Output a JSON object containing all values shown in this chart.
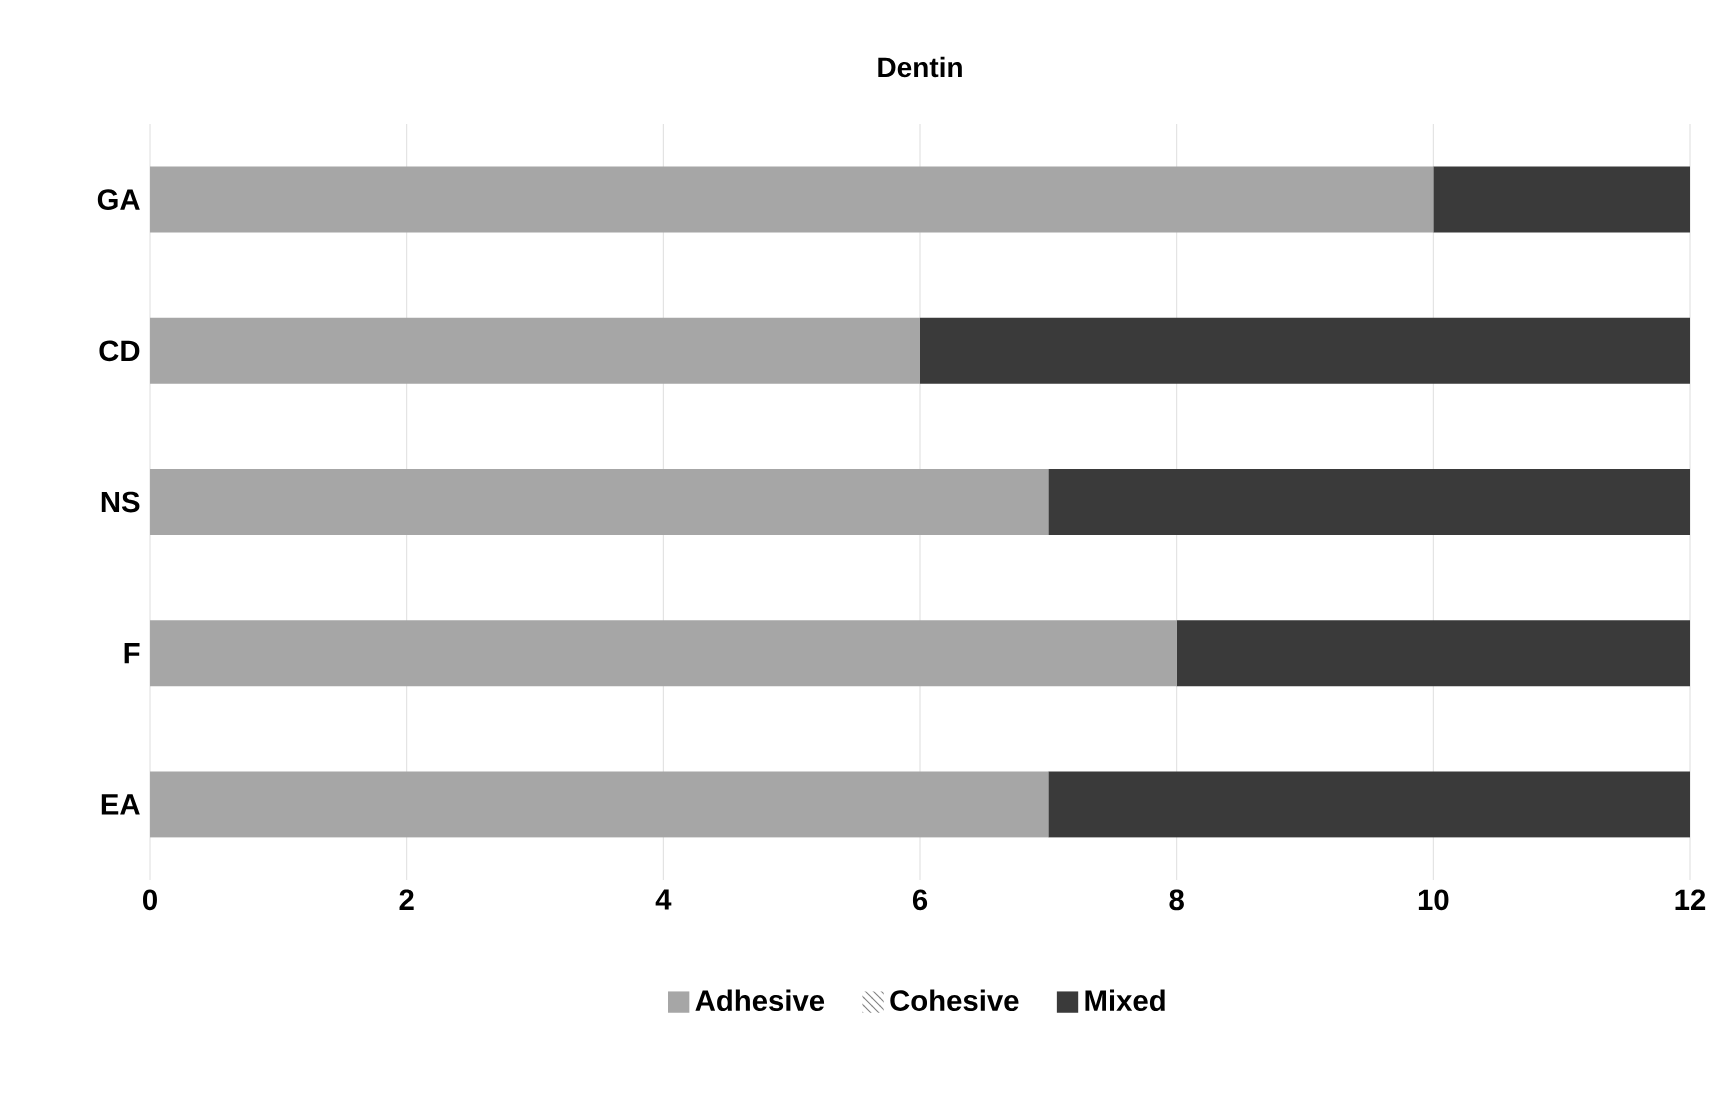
{
  "chart_data": {
    "type": "bar",
    "orientation": "horizontal",
    "stacked": true,
    "title": "Dentin",
    "categories": [
      "GA",
      "CD",
      "NS",
      "F",
      "EA"
    ],
    "series": [
      {
        "name": "Adhesive",
        "color": "#a6a6a6",
        "values": [
          10,
          6,
          7,
          8,
          7
        ]
      },
      {
        "name": "Cohesive",
        "color": "#7f7f7f",
        "values": [
          0,
          0,
          0,
          0,
          0
        ]
      },
      {
        "name": "Mixed",
        "color": "#3a3a3a",
        "values": [
          2,
          6,
          5,
          4,
          5
        ]
      }
    ],
    "xlim": [
      0,
      12
    ],
    "xticks": [
      0,
      2,
      4,
      6,
      8,
      10,
      12
    ],
    "grid": "x",
    "legend": "bottom"
  }
}
